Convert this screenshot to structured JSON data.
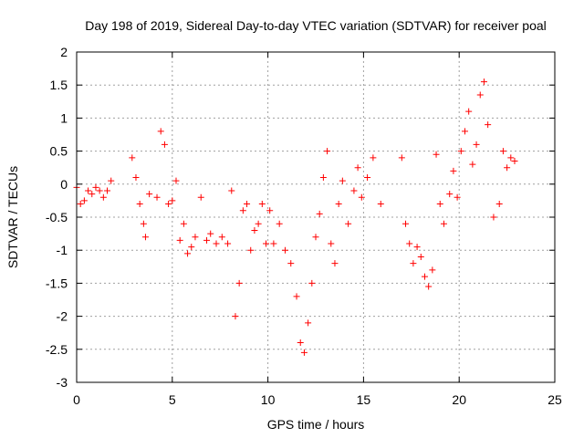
{
  "chart_data": {
    "type": "scatter",
    "title": "Day 198 of 2019, Sidereal Day-to-day VTEC variation (SDTVAR) for receiver poal",
    "xlabel": "GPS time / hours",
    "ylabel": "SDTVAR / TECUs",
    "xlim": [
      0,
      25
    ],
    "ylim": [
      -3,
      2
    ],
    "xticks": [
      0,
      5,
      10,
      15,
      20,
      25
    ],
    "yticks": [
      -3,
      -2.5,
      -2,
      -1.5,
      -1,
      -0.5,
      0,
      0.5,
      1,
      1.5,
      2
    ],
    "xtick_labels": [
      "0",
      "5",
      "10",
      "15",
      "20",
      "25"
    ],
    "ytick_labels": [
      "-3",
      "-2.5",
      "-2",
      "-1.5",
      "-1",
      "-0.5",
      "0",
      "0.5",
      "1",
      "1.5",
      "2"
    ],
    "grid": true,
    "marker": "+",
    "marker_color": "#ff0000",
    "series": [
      {
        "name": "SDTVAR",
        "x": [
          0.0,
          0.2,
          0.4,
          0.6,
          0.8,
          1.0,
          1.2,
          1.4,
          1.6,
          1.8,
          2.9,
          3.1,
          3.3,
          3.5,
          3.6,
          3.8,
          4.2,
          4.4,
          4.6,
          4.8,
          5.0,
          5.2,
          5.4,
          5.6,
          5.8,
          6.0,
          6.2,
          6.5,
          6.8,
          7.0,
          7.3,
          7.6,
          7.9,
          8.1,
          8.3,
          8.5,
          8.7,
          8.9,
          9.1,
          9.3,
          9.5,
          9.7,
          9.9,
          10.1,
          10.3,
          10.6,
          10.9,
          11.2,
          11.5,
          11.7,
          11.9,
          12.1,
          12.3,
          12.5,
          12.7,
          12.9,
          13.1,
          13.3,
          13.5,
          13.7,
          13.9,
          14.2,
          14.5,
          14.7,
          14.9,
          15.2,
          15.5,
          15.9,
          17.0,
          17.2,
          17.4,
          17.6,
          17.8,
          18.0,
          18.2,
          18.4,
          18.6,
          18.8,
          19.0,
          19.2,
          19.5,
          19.7,
          19.9,
          20.1,
          20.3,
          20.5,
          20.7,
          20.9,
          21.1,
          21.3,
          21.5,
          21.8,
          22.1,
          22.3,
          22.5,
          22.7,
          22.9
        ],
        "y": [
          -0.05,
          -0.3,
          -0.25,
          -0.1,
          -0.15,
          -0.05,
          -0.1,
          -0.2,
          -0.1,
          0.05,
          0.4,
          0.1,
          -0.3,
          -0.6,
          -0.8,
          -0.15,
          -0.2,
          0.8,
          0.6,
          -0.3,
          -0.25,
          0.05,
          -0.85,
          -0.6,
          -1.05,
          -0.95,
          -0.8,
          -0.2,
          -0.85,
          -0.75,
          -0.9,
          -0.8,
          -0.9,
          -0.1,
          -2.0,
          -1.5,
          -0.4,
          -0.3,
          -1.0,
          -0.7,
          -0.6,
          -0.3,
          -0.9,
          -0.4,
          -0.9,
          -0.6,
          -1.0,
          -1.2,
          -1.7,
          -2.4,
          -2.55,
          -2.1,
          -1.5,
          -0.8,
          -0.45,
          0.1,
          0.5,
          -0.9,
          -1.2,
          -0.3,
          0.05,
          -0.6,
          -0.1,
          0.25,
          -0.2,
          0.1,
          0.4,
          -0.3,
          0.4,
          -0.6,
          -0.9,
          -1.2,
          -0.95,
          -1.1,
          -1.4,
          -1.55,
          -1.3,
          0.45,
          -0.3,
          -0.6,
          -0.15,
          0.2,
          -0.2,
          0.5,
          0.8,
          1.1,
          0.3,
          0.6,
          1.35,
          1.55,
          0.9,
          -0.5,
          -0.3,
          0.5,
          0.25,
          0.4,
          0.35
        ]
      }
    ]
  }
}
